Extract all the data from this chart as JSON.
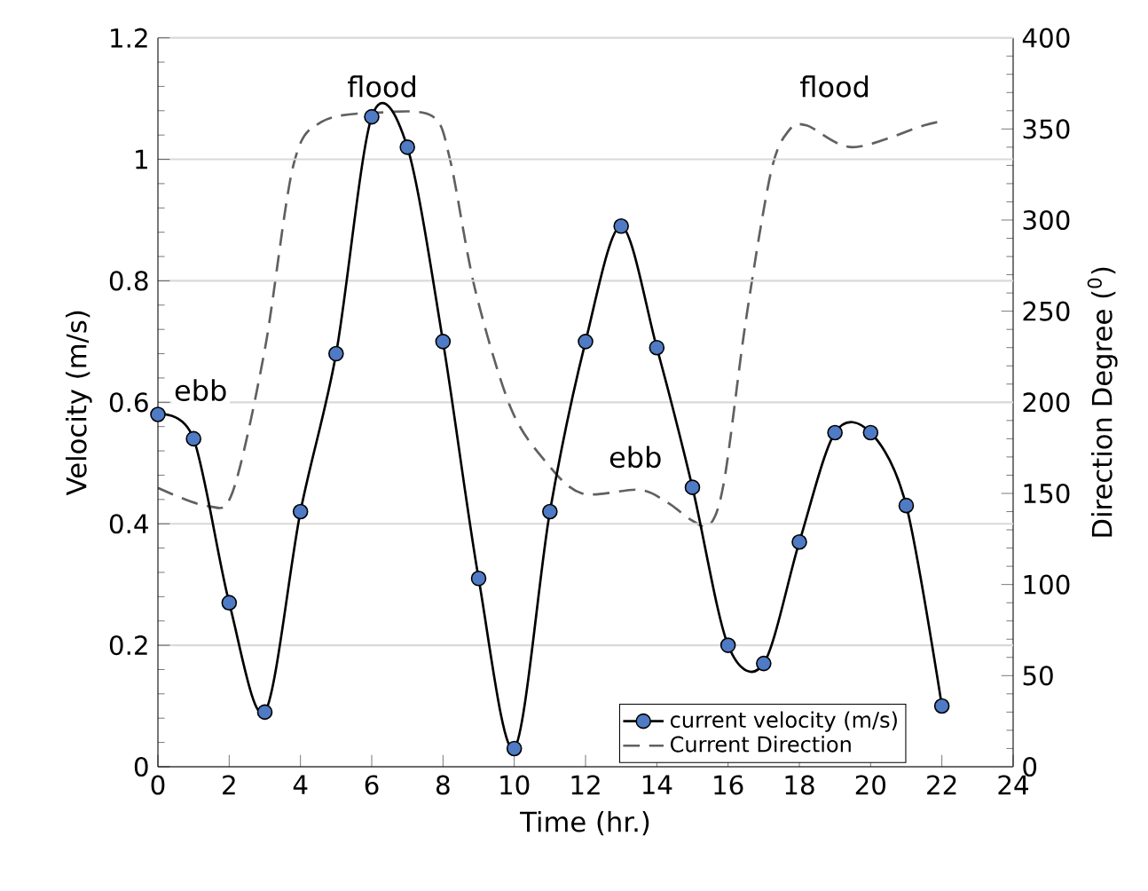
{
  "chart_data": {
    "type": "line",
    "xlabel": "Time (hr.)",
    "ylabel": "Velocity (m/s)",
    "y2label": "Direction Degree ($^{0}$)",
    "xlim": [
      0,
      24
    ],
    "xticks": [
      0,
      2,
      4,
      6,
      8,
      10,
      12,
      14,
      16,
      18,
      20,
      22,
      24
    ],
    "ylim": [
      0,
      1.2
    ],
    "yticks": [
      0,
      0.2,
      0.4,
      0.6,
      0.8,
      1,
      1.2
    ],
    "y2lim": [
      0,
      400
    ],
    "y2ticks": [
      0,
      50,
      100,
      150,
      200,
      250,
      300,
      350,
      400
    ],
    "grid": "y",
    "legend": "bottom right",
    "series": [
      {
        "name": "current velocity (m/s)",
        "color": "#000000",
        "marker": "circle",
        "line_style": "solid",
        "x": [
          0,
          1,
          2,
          3,
          4,
          5,
          6,
          7,
          8,
          9,
          10,
          11,
          12,
          13,
          14,
          15,
          16,
          17,
          18,
          19,
          20,
          21,
          22
        ],
        "values": [
          0.58,
          0.54,
          0.27,
          0.09,
          0.42,
          0.68,
          1.07,
          1.02,
          0.7,
          0.31,
          0.03,
          0.42,
          0.7,
          0.89,
          0.69,
          0.46,
          0.2,
          0.17,
          0.37,
          0.55,
          0.55,
          0.43,
          0.1
        ]
      },
      {
        "name": "Current Direction",
        "color": "#606060",
        "marker": "none",
        "line_style": "dashed",
        "axis": "y2",
        "x": [
          0,
          1.4,
          2.1,
          3.0,
          3.8,
          4.6,
          6.2,
          7.7,
          8.2,
          8.9,
          9.9,
          10.9,
          11.9,
          13.5,
          14.3,
          15.0,
          15.5,
          15.9,
          16.5,
          17.2,
          17.7,
          18.2,
          19.5,
          21.5,
          22
        ],
        "values": [
          153,
          143,
          151,
          229,
          330,
          354,
          359,
          357,
          333,
          262,
          197,
          167,
          150,
          152,
          145,
          135,
          133,
          158,
          245,
          326,
          349,
          352,
          340,
          352,
          354
        ]
      }
    ],
    "annotations": [
      {
        "text": "ebb",
        "x": 1.2,
        "y": 0.62
      },
      {
        "text": "flood",
        "x": 6.3,
        "y": 1.12
      },
      {
        "text": "ebb",
        "x": 13.4,
        "y": 0.51
      },
      {
        "text": "flood",
        "x": 19.0,
        "y": 1.12
      }
    ]
  }
}
